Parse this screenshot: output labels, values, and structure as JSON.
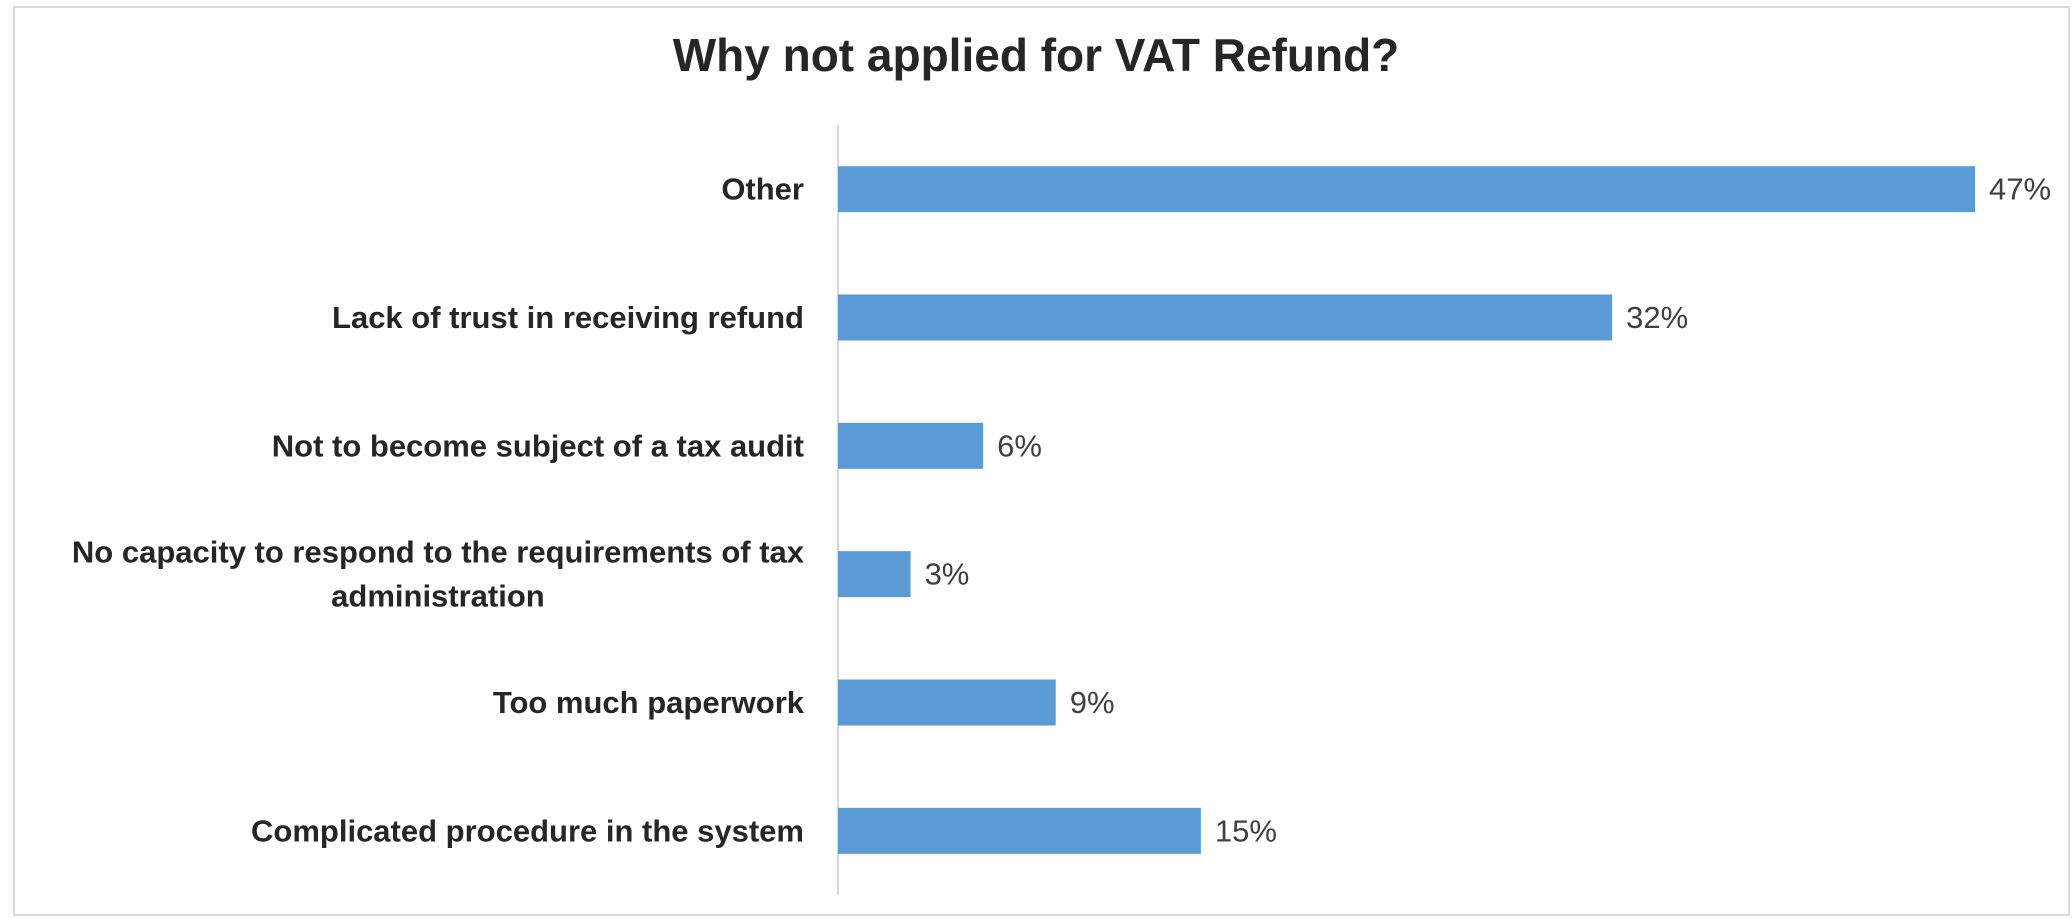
{
  "chart_data": {
    "type": "bar",
    "orientation": "horizontal",
    "title": "Why not applied for VAT Refund?",
    "categories": [
      "Other",
      "Lack of trust in receiving refund",
      "Not to become subject of a tax audit",
      "No capacity to respond to the requirements of tax administration",
      "Too much paperwork",
      "Complicated procedure in the system"
    ],
    "label_lines": [
      [
        "Other"
      ],
      [
        "Lack of trust in receiving refund"
      ],
      [
        "Not to become subject of a tax audit"
      ],
      [
        "No capacity to respond to the requirements of tax",
        "administration"
      ],
      [
        "Too much paperwork"
      ],
      [
        "Complicated procedure in the system"
      ]
    ],
    "values": [
      47,
      32,
      6,
      3,
      9,
      15
    ],
    "value_labels": [
      "47%",
      "32%",
      "6%",
      "3%",
      "9%",
      "15%"
    ],
    "unit": "%",
    "xlim": [
      0,
      47
    ],
    "grid": false,
    "legend": "none",
    "colors": {
      "bar": "#5b9bd5",
      "axis": "#d9d9d9",
      "text": "#262626"
    }
  }
}
